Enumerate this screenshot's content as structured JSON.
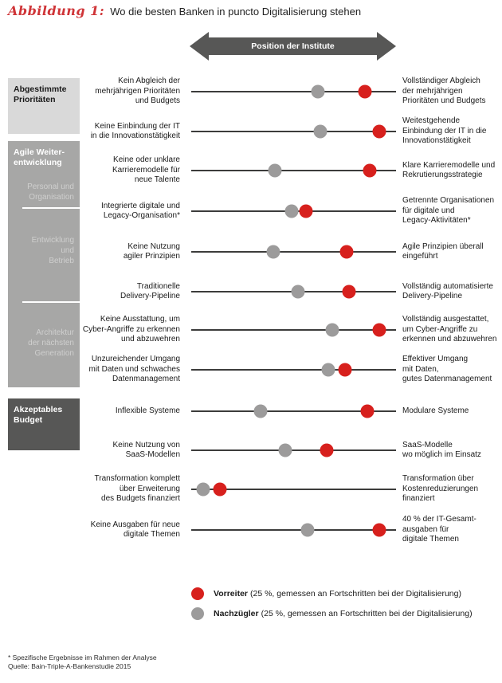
{
  "title": {
    "prefix": "Abbildung 1:",
    "text": "Wo die besten Banken in puncto Digitalisierung stehen"
  },
  "axis": {
    "arrow_label": "Position der Institute"
  },
  "sidebar": {
    "groups": [
      {
        "label": "Abgestimmte\nPrioritäten",
        "subgroups": []
      },
      {
        "label": "Agile Weiter-\nentwicklung",
        "subgroups": [
          "Personal und\nOrganisation",
          "Entwicklung\nund\nBetrieb",
          "Architektur\nder nächsten\nGeneration"
        ]
      },
      {
        "label": "Akzeptables\nBudget",
        "subgroups": []
      }
    ]
  },
  "legend": {
    "leader": {
      "label": "Vorreiter",
      "description": "(25 %, gemessen an Fortschritten bei der Digitalisierung)",
      "color": "#d7201d"
    },
    "laggard": {
      "label": "Nachzügler",
      "description": "(25 %, gemessen an Fortschritten bei der Digitalisierung)",
      "color": "#9c9b9b"
    }
  },
  "footnotes": {
    "note": "* Spezifische Ergebnisse im Rahmen der Analyse",
    "source": "Quelle: Bain-Triple-A-Bankenstudie 2015"
  },
  "colors": {
    "leader_red": "#d7201d",
    "laggard_gray": "#9c9b9b",
    "sidebar_light": "#d9d9d9",
    "sidebar_medium": "#a7a7a6",
    "sidebar_dark": "#575756",
    "line": "#3c3c3b",
    "title_red": "#cf3437"
  },
  "chart_data": {
    "type": "scatter",
    "title": "Wo die besten Banken in puncto Digitalisierung stehen",
    "xlabel": "Position der Institute",
    "x_scale": "qualitative 0–100 (left = negative statement, right = positive statement)",
    "xlim": [
      0,
      100
    ],
    "grid": false,
    "legend_position": "bottom",
    "series_names": [
      "Vorreiter",
      "Nachzügler"
    ],
    "rows": [
      {
        "left_label": "Kein Abgleich der\nmehrjährigen Prioritäten\nund Budgets",
        "right_label": "Vollständiger Abgleich\nder mehrjährigen\nPrioritäten und Budgets",
        "laggard": 62,
        "leader": 85
      },
      {
        "left_label": "Keine Einbindung der IT\nin die Innovationstätigkeit",
        "right_label": "Weitestgehende\nEinbindung der IT in die\nInnovationstätigkeit",
        "laggard": 63,
        "leader": 92
      },
      {
        "left_label": "Keine oder unklare\nKarrieremodelle für\nneue Talente",
        "right_label": "Klare Karrieremodelle und\nRekrutierungsstrategie",
        "laggard": 41,
        "leader": 87
      },
      {
        "left_label": "Integrierte digitale und\nLegacy-Organisation*",
        "right_label": "Getrennte Organisationen\nfür digitale und\nLegacy-Aktivitäten*",
        "laggard": 49,
        "leader": 56
      },
      {
        "left_label": "Keine Nutzung\nagiler Prinzipien",
        "right_label": "Agile Prinzipien überall\neingeführt",
        "laggard": 40,
        "leader": 76
      },
      {
        "left_label": "Traditionelle\nDelivery-Pipeline",
        "right_label": "Vollständig automatisierte\nDelivery-Pipeline",
        "laggard": 52,
        "leader": 77
      },
      {
        "left_label": "Keine Ausstattung, um\nCyber-Angriffe zu erkennen\nund abzuwehren",
        "right_label": "Vollständig ausgestattet,\num Cyber-Angriffe zu\nerkennen und abzuwehren",
        "laggard": 69,
        "leader": 92
      },
      {
        "left_label": "Unzureichender Umgang\nmit Daten und schwaches\nDatenmanagement",
        "right_label": "Effektiver Umgang\nmit Daten,\ngutes Datenmanagement",
        "laggard": 67,
        "leader": 75
      },
      {
        "left_label": "Inflexible Systeme",
        "right_label": "Modulare Systeme",
        "laggard": 34,
        "leader": 86
      },
      {
        "left_label": "Keine Nutzung von\nSaaS-Modellen",
        "right_label": "SaaS-Modelle\nwo möglich im Einsatz",
        "laggard": 46,
        "leader": 66
      },
      {
        "left_label": "Transformation komplett\nüber Erweiterung\ndes Budgets finanziert",
        "right_label": "Transformation über\nKostenreduzierungen\nfinanziert",
        "laggard": 6,
        "leader": 14
      },
      {
        "left_label": "Keine Ausgaben für neue\ndigitale Themen",
        "right_label": "40 % der IT-Gesamt-\nausgaben für\ndigitale Themen",
        "laggard": 57,
        "leader": 92
      }
    ]
  }
}
